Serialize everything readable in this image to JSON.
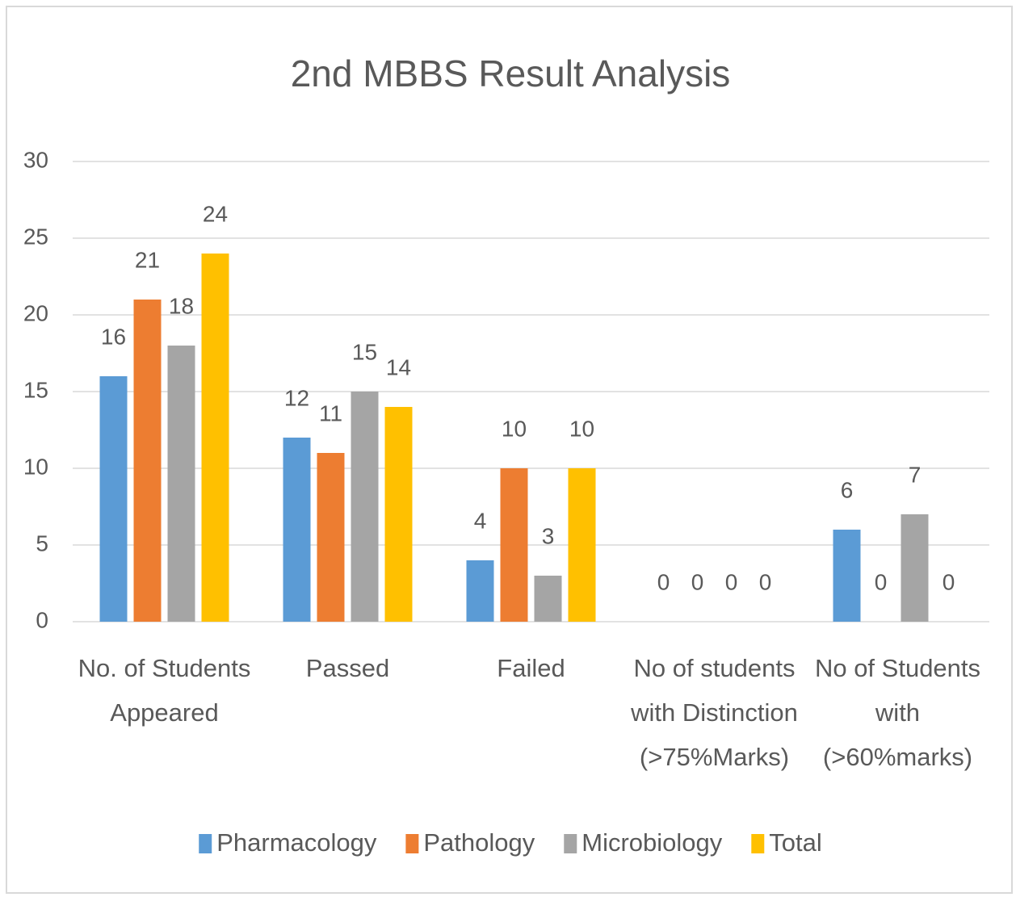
{
  "chart_data": {
    "type": "bar",
    "title": "2nd MBBS Result Analysis",
    "categories": [
      [
        "No. of Students",
        "Appeared"
      ],
      [
        "Passed"
      ],
      [
        "Failed"
      ],
      [
        "No of students",
        "with Distinction",
        "(>75%Marks)"
      ],
      [
        "No of Students",
        "with",
        "(>60%marks)"
      ]
    ],
    "series": [
      {
        "name": "Pharmacology",
        "color": "#5b9bd5",
        "values": [
          16,
          12,
          4,
          0,
          6
        ]
      },
      {
        "name": "Pathology",
        "color": "#ed7d31",
        "values": [
          21,
          11,
          10,
          0,
          0
        ]
      },
      {
        "name": "Microbiology",
        "color": "#a5a5a5",
        "values": [
          18,
          15,
          3,
          0,
          7
        ]
      },
      {
        "name": "Total",
        "color": "#ffc000",
        "values": [
          24,
          14,
          10,
          0,
          0
        ]
      }
    ],
    "ylim": [
      0,
      30
    ],
    "yticks": [
      0,
      5,
      10,
      15,
      20,
      25,
      30
    ],
    "grid": true,
    "legend": "bottom"
  }
}
